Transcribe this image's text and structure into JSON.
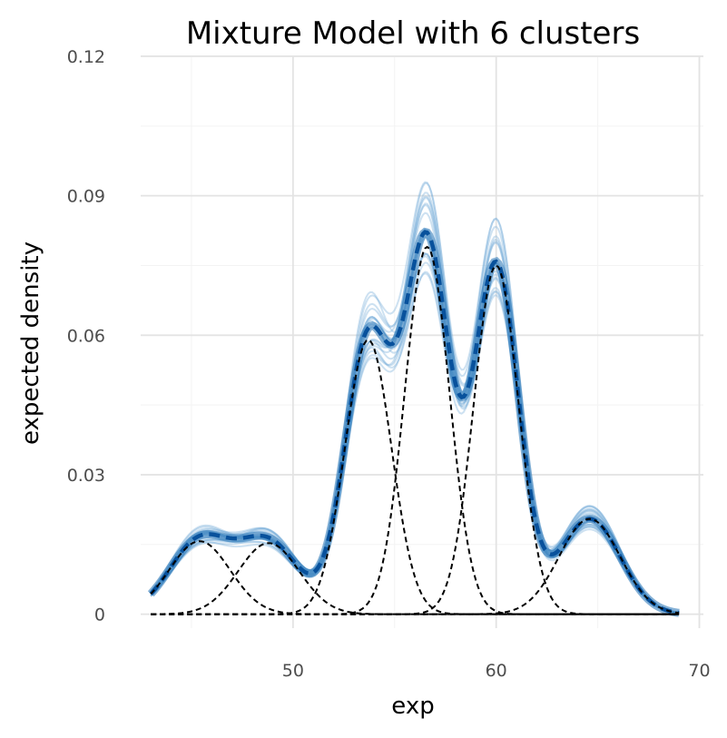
{
  "chart_data": {
    "type": "line",
    "title": "Mixture Model with 6 clusters",
    "xlabel": "exp",
    "ylabel": "expected density",
    "xlim": [
      42.5,
      70.2
    ],
    "ylim": [
      -0.003,
      0.12
    ],
    "x_range": [
      43,
      69
    ],
    "x_ticks": [
      50,
      60,
      70
    ],
    "x_tick_labels": [
      "50",
      "60",
      "70"
    ],
    "y_ticks": [
      0,
      0.03,
      0.06,
      0.09,
      0.12
    ],
    "y_tick_labels": [
      "0",
      "0.03",
      "0.06",
      "0.09",
      "0.12"
    ],
    "grid": true,
    "legend": "none",
    "components": [
      {
        "mean": 45.4,
        "sd": 1.5,
        "peak": 0.0157
      },
      {
        "mean": 48.8,
        "sd": 1.5,
        "peak": 0.0153
      },
      {
        "mean": 53.7,
        "sd": 1.15,
        "peak": 0.059
      },
      {
        "mean": 56.6,
        "sd": 1.1,
        "peak": 0.079
      },
      {
        "mean": 60.0,
        "sd": 1.1,
        "peak": 0.075
      },
      {
        "mean": 64.6,
        "sd": 1.5,
        "peak": 0.0205
      }
    ],
    "posterior_draws": 20,
    "colors": {
      "draws": "#6fa8d6",
      "mean": "#08519c",
      "components": "#000000",
      "band": "#2171b5"
    }
  }
}
